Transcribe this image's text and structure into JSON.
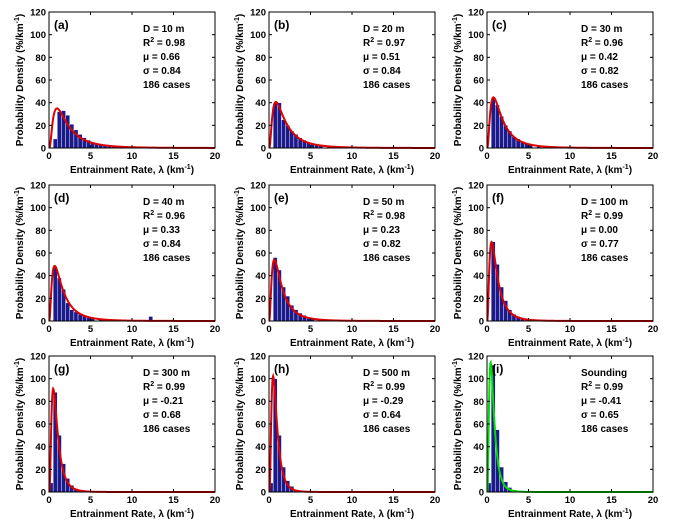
{
  "figure": {
    "x_axis_label": "Entrainment Rate, λ (km",
    "x_axis_unit_exp": "-1",
    "x_axis_label_end": ")",
    "y_axis_label": "Probability Density (%/km",
    "y_axis_unit_exp": "-1",
    "y_axis_label_end": ")"
  },
  "chart_data": [
    {
      "type": "bar",
      "panel": "(a)",
      "header": "D = 10 m",
      "r2": "0.98",
      "mu": "0.66",
      "sigma": "0.84",
      "cases": "186 cases",
      "xlim": [
        0,
        20
      ],
      "ylim": [
        0,
        120
      ],
      "x_ticks": [
        0,
        5,
        10,
        15,
        20
      ],
      "y_ticks": [
        0,
        20,
        40,
        60,
        80,
        100,
        120
      ],
      "bar_width": 0.5,
      "bar_color": "#1a1a8c",
      "curve_color": "#e00000",
      "bins": [
        0.5,
        1.0,
        1.5,
        2.0,
        2.5,
        3.0,
        3.5,
        4.0,
        4.5,
        5.0,
        5.5,
        6.0,
        6.5,
        7.0,
        7.5,
        8.0,
        9.0,
        11.0
      ],
      "values": [
        8,
        32,
        33,
        29,
        21,
        16,
        12,
        9,
        7,
        5,
        4,
        3,
        2,
        2,
        1.5,
        1,
        1,
        0.5
      ],
      "fit": {
        "mu": 0.66,
        "sigma": 0.84
      }
    },
    {
      "type": "bar",
      "panel": "(b)",
      "header": "D = 20 m",
      "r2": "0.97",
      "mu": "0.51",
      "sigma": "0.84",
      "cases": "186 cases",
      "xlim": [
        0,
        20
      ],
      "ylim": [
        0,
        120
      ],
      "x_ticks": [
        0,
        5,
        10,
        15,
        20
      ],
      "y_ticks": [
        0,
        20,
        40,
        60,
        80,
        100,
        120
      ],
      "bar_width": 0.5,
      "bar_color": "#1a1a8c",
      "curve_color": "#e00000",
      "bins": [
        0.5,
        1.0,
        1.5,
        2.0,
        2.5,
        3.0,
        3.5,
        4.0,
        4.5,
        5.0,
        5.5,
        6.0,
        7.0,
        8.0,
        9.0
      ],
      "values": [
        40,
        40,
        25,
        20,
        15,
        12,
        9,
        7,
        5,
        4,
        3,
        2,
        2,
        1,
        1
      ],
      "fit": {
        "mu": 0.51,
        "sigma": 0.84
      }
    },
    {
      "type": "bar",
      "panel": "(c)",
      "header": "D = 30 m",
      "r2": "0.96",
      "mu": "0.42",
      "sigma": "0.82",
      "cases": "186 cases",
      "xlim": [
        0,
        20
      ],
      "ylim": [
        0,
        120
      ],
      "x_ticks": [
        0,
        5,
        10,
        15,
        20
      ],
      "y_ticks": [
        0,
        20,
        40,
        60,
        80,
        100,
        120
      ],
      "bar_width": 0.5,
      "bar_color": "#1a1a8c",
      "curve_color": "#e00000",
      "bins": [
        0.5,
        1.0,
        1.5,
        2.0,
        2.5,
        3.0,
        3.5,
        4.0,
        4.5,
        5.0,
        6.0,
        7.0,
        8.0
      ],
      "values": [
        44,
        38,
        28,
        20,
        15,
        10,
        8,
        6,
        4,
        3,
        2,
        1.5,
        1
      ],
      "fit": {
        "mu": 0.42,
        "sigma": 0.82
      }
    },
    {
      "type": "bar",
      "panel": "(d)",
      "header": "D = 40 m",
      "r2": "0.96",
      "mu": "0.33",
      "sigma": "0.84",
      "cases": "186 cases",
      "xlim": [
        0,
        20
      ],
      "ylim": [
        0,
        120
      ],
      "x_ticks": [
        0,
        5,
        10,
        15,
        20
      ],
      "y_ticks": [
        0,
        20,
        40,
        60,
        80,
        100,
        120
      ],
      "bar_width": 0.5,
      "bar_color": "#1a1a8c",
      "curve_color": "#e00000",
      "bins": [
        0.5,
        1.0,
        1.5,
        2.0,
        2.5,
        3.0,
        3.5,
        4.0,
        4.5,
        5.0,
        6.0,
        7.0,
        12.0
      ],
      "values": [
        48,
        38,
        28,
        16,
        10,
        8,
        6,
        5,
        3,
        2,
        1.5,
        1,
        4
      ],
      "fit": {
        "mu": 0.33,
        "sigma": 0.84
      }
    },
    {
      "type": "bar",
      "panel": "(e)",
      "header": "D = 50 m",
      "r2": "0.98",
      "mu": "0.23",
      "sigma": "0.82",
      "cases": "186 cases",
      "xlim": [
        0,
        20
      ],
      "ylim": [
        0,
        120
      ],
      "x_ticks": [
        0,
        5,
        10,
        15,
        20
      ],
      "y_ticks": [
        0,
        20,
        40,
        60,
        80,
        100,
        120
      ],
      "bar_width": 0.5,
      "bar_color": "#1a1a8c",
      "curve_color": "#e00000",
      "bins": [
        0.5,
        1.0,
        1.5,
        2.0,
        2.5,
        3.0,
        3.5,
        4.0,
        4.5,
        5.0,
        6.0,
        7.0
      ],
      "values": [
        56,
        45,
        30,
        22,
        14,
        10,
        7,
        5,
        3,
        2,
        1,
        1
      ],
      "fit": {
        "mu": 0.23,
        "sigma": 0.82
      }
    },
    {
      "type": "bar",
      "panel": "(f)",
      "header": "D = 100 m",
      "r2": "0.99",
      "mu": "0.00",
      "sigma": "0.77",
      "cases": "186 cases",
      "xlim": [
        0,
        20
      ],
      "ylim": [
        0,
        120
      ],
      "x_ticks": [
        0,
        5,
        10,
        15,
        20
      ],
      "y_ticks": [
        0,
        20,
        40,
        60,
        80,
        100,
        120
      ],
      "bar_width": 0.5,
      "bar_color": "#1a1a8c",
      "curve_color": "#e00000",
      "bins": [
        0.5,
        1.0,
        1.5,
        2.0,
        2.5,
        3.0,
        3.5,
        4.0,
        4.5,
        5.0
      ],
      "values": [
        70,
        50,
        30,
        18,
        10,
        6,
        4,
        2,
        1,
        1
      ],
      "fit": {
        "mu": 0.0,
        "sigma": 0.77
      }
    },
    {
      "type": "bar",
      "panel": "(g)",
      "header": "D = 300 m",
      "r2": "0.99",
      "mu": "-0.21",
      "sigma": "0.68",
      "cases": "186 cases",
      "xlim": [
        0,
        20
      ],
      "ylim": [
        0,
        120
      ],
      "x_ticks": [
        0,
        5,
        10,
        15,
        20
      ],
      "y_ticks": [
        0,
        20,
        40,
        60,
        80,
        100,
        120
      ],
      "bar_width": 0.5,
      "bar_color": "#1a1a8c",
      "curve_color": "#e00000",
      "bins": [
        0.0,
        0.5,
        1.0,
        1.5,
        2.0,
        2.5,
        3.0,
        3.5,
        4.0
      ],
      "values": [
        8,
        88,
        50,
        25,
        12,
        6,
        3,
        2,
        1
      ],
      "fit": {
        "mu": -0.21,
        "sigma": 0.68
      }
    },
    {
      "type": "bar",
      "panel": "(h)",
      "header": "D = 500 m",
      "r2": "0.99",
      "mu": "-0.29",
      "sigma": "0.64",
      "cases": "186 cases",
      "xlim": [
        0,
        20
      ],
      "ylim": [
        0,
        120
      ],
      "x_ticks": [
        0,
        5,
        10,
        15,
        20
      ],
      "y_ticks": [
        0,
        20,
        40,
        60,
        80,
        100,
        120
      ],
      "bar_width": 0.5,
      "bar_color": "#1a1a8c",
      "curve_color": "#e00000",
      "bins": [
        0.0,
        0.5,
        1.0,
        1.5,
        2.0,
        2.5,
        3.0,
        3.5
      ],
      "values": [
        8,
        100,
        50,
        22,
        10,
        5,
        2,
        1
      ],
      "fit": {
        "mu": -0.29,
        "sigma": 0.64
      }
    },
    {
      "type": "bar",
      "panel": "(i)",
      "header": "Sounding",
      "r2": "0.99",
      "mu": "-0.41",
      "sigma": "0.65",
      "cases": "186 cases",
      "xlim": [
        0,
        20
      ],
      "ylim": [
        0,
        120
      ],
      "x_ticks": [
        0,
        5,
        10,
        15,
        20
      ],
      "y_ticks": [
        0,
        20,
        40,
        60,
        80,
        100,
        120
      ],
      "bar_width": 0.5,
      "bar_color": "#1a1a8c",
      "curve_color": "#00dd00",
      "bins": [
        0.0,
        0.5,
        1.0,
        1.5,
        2.0,
        2.5,
        3.0,
        3.5
      ],
      "values": [
        8,
        112,
        55,
        22,
        9,
        4,
        2,
        1
      ],
      "fit": {
        "mu": -0.41,
        "sigma": 0.65
      }
    }
  ]
}
